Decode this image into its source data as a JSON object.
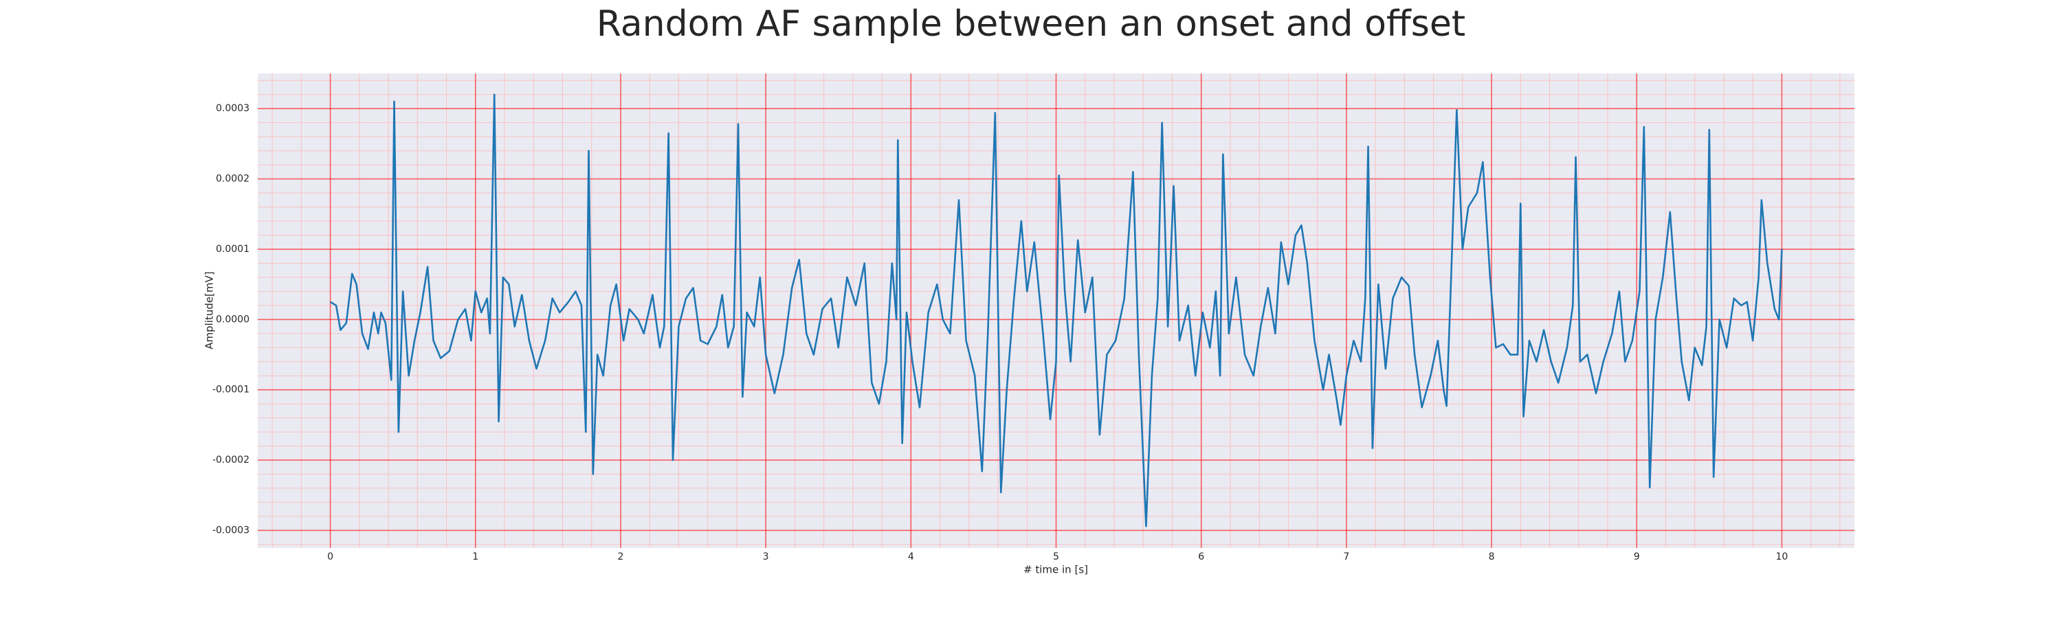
{
  "chart_data": {
    "type": "line",
    "title": "Random AF sample between an onset and offset",
    "x_label": "# time in [s]",
    "y_label": "Amplitude[mV]",
    "xlim": [
      -0.5,
      10.5
    ],
    "ylim": [
      -0.000325,
      0.00035
    ],
    "xticks": [
      0,
      1,
      2,
      3,
      4,
      5,
      6,
      7,
      8,
      9,
      10
    ],
    "yticks": [
      -0.0003,
      -0.0002,
      -0.0001,
      {
        "value": 0,
        "label": "0.0000"
      },
      0.0001,
      0.0002,
      0.0003
    ],
    "grid": true,
    "minor_divisions": 5,
    "series": [
      {
        "color": "#1f77b4",
        "x": [
          0.0,
          0.04,
          0.07,
          0.11,
          0.15,
          0.18,
          0.22,
          0.26,
          0.3,
          0.33,
          0.35,
          0.38,
          0.42,
          0.44,
          0.47,
          0.5,
          0.54,
          0.58,
          0.62,
          0.67,
          0.71,
          0.76,
          0.82,
          0.88,
          0.93,
          0.97,
          1.0,
          1.04,
          1.08,
          1.1,
          1.13,
          1.16,
          1.19,
          1.23,
          1.27,
          1.32,
          1.37,
          1.42,
          1.48,
          1.53,
          1.58,
          1.64,
          1.69,
          1.73,
          1.76,
          1.78,
          1.81,
          1.84,
          1.88,
          1.93,
          1.97,
          2.02,
          2.06,
          2.12,
          2.16,
          2.22,
          2.27,
          2.3,
          2.33,
          2.36,
          2.4,
          2.45,
          2.5,
          2.55,
          2.6,
          2.66,
          2.7,
          2.74,
          2.78,
          2.81,
          2.84,
          2.87,
          2.92,
          2.96,
          3.0,
          3.06,
          3.12,
          3.18,
          3.23,
          3.28,
          3.33,
          3.39,
          3.45,
          3.5,
          3.56,
          3.62,
          3.68,
          3.73,
          3.78,
          3.83,
          3.87,
          3.9,
          3.91,
          3.94,
          3.97,
          4.01,
          4.06,
          4.12,
          4.18,
          4.22,
          4.27,
          4.33,
          4.38,
          4.44,
          4.49,
          4.53,
          4.58,
          4.62,
          4.66,
          4.71,
          4.76,
          4.8,
          4.85,
          4.91,
          4.96,
          5.0,
          5.02,
          5.06,
          5.1,
          5.15,
          5.2,
          5.25,
          5.3,
          5.35,
          5.41,
          5.47,
          5.53,
          5.57,
          5.62,
          5.66,
          5.7,
          5.73,
          5.77,
          5.81,
          5.85,
          5.91,
          5.96,
          6.01,
          6.06,
          6.1,
          6.13,
          6.15,
          6.19,
          6.24,
          6.3,
          6.36,
          6.41,
          6.46,
          6.51,
          6.55,
          6.6,
          6.65,
          6.69,
          6.73,
          6.78,
          6.84,
          6.88,
          6.93,
          6.96,
          7.0,
          7.05,
          7.1,
          7.13,
          7.15,
          7.18,
          7.22,
          7.27,
          7.32,
          7.38,
          7.43,
          7.47,
          7.52,
          7.58,
          7.63,
          7.67,
          7.69,
          7.72,
          7.76,
          7.8,
          7.84,
          7.9,
          7.94,
          7.99,
          8.03,
          8.08,
          8.13,
          8.18,
          8.2,
          8.22,
          8.26,
          8.31,
          8.36,
          8.41,
          8.46,
          8.52,
          8.56,
          8.58,
          8.61,
          8.66,
          8.72,
          8.77,
          8.83,
          8.88,
          8.92,
          8.97,
          9.02,
          9.05,
          9.09,
          9.13,
          9.18,
          9.23,
          9.27,
          9.31,
          9.36,
          9.4,
          9.45,
          9.48,
          9.5,
          9.53,
          9.57,
          9.62,
          9.67,
          9.72,
          9.76,
          9.8,
          9.84,
          9.86,
          9.9,
          9.95,
          9.98,
          10.0
        ],
        "values": [
          2.5e-05,
          2e-05,
          -1.5e-05,
          -5e-06,
          6.5e-05,
          5e-05,
          -2e-05,
          -4.2e-05,
          1e-05,
          -2e-05,
          1e-05,
          -5e-06,
          -8.6e-05,
          0.00031,
          -0.00016,
          4e-05,
          -8e-05,
          -3e-05,
          1e-05,
          7.5e-05,
          -3e-05,
          -5.5e-05,
          -4.5e-05,
          0.0,
          1.5e-05,
          -3e-05,
          4e-05,
          1e-05,
          3e-05,
          -2e-05,
          0.00032,
          -0.000145,
          6e-05,
          5e-05,
          -1e-05,
          3.5e-05,
          -3e-05,
          -7e-05,
          -3e-05,
          3e-05,
          1e-05,
          2.5e-05,
          4e-05,
          2e-05,
          -0.00016,
          0.00024,
          -0.00022,
          -5e-05,
          -8e-05,
          2e-05,
          5e-05,
          -3e-05,
          1.5e-05,
          0.0,
          -2e-05,
          3.5e-05,
          -4e-05,
          -1e-05,
          0.000265,
          -0.0002,
          -1e-05,
          3e-05,
          4.5e-05,
          -3e-05,
          -3.5e-05,
          -1e-05,
          3.5e-05,
          -4e-05,
          -1e-05,
          0.000278,
          -0.00011,
          1e-05,
          -1e-05,
          6e-05,
          -5e-05,
          -0.000105,
          -5e-05,
          4.5e-05,
          8.5e-05,
          -2e-05,
          -5e-05,
          1.5e-05,
          3e-05,
          -4e-05,
          6e-05,
          2e-05,
          8e-05,
          -9e-05,
          -0.00012,
          -6e-05,
          8e-05,
          0.0,
          0.000255,
          -0.000176,
          1e-05,
          -6e-05,
          -0.000125,
          1e-05,
          5e-05,
          0.0,
          -2e-05,
          0.00017,
          -3e-05,
          -8e-05,
          -0.000216,
          -2e-05,
          0.000294,
          -0.000246,
          -0.0001,
          3e-05,
          0.00014,
          4e-05,
          0.00011,
          -2e-05,
          -0.000142,
          -6e-05,
          0.000205,
          4e-05,
          -6e-05,
          0.000113,
          1e-05,
          6e-05,
          -0.000164,
          -5e-05,
          -3e-05,
          3e-05,
          0.00021,
          -5e-05,
          -0.000294,
          -8e-05,
          3e-05,
          0.00028,
          -1e-05,
          0.00019,
          -3e-05,
          2e-05,
          -8e-05,
          1e-05,
          -4e-05,
          4e-05,
          -8e-05,
          0.000235,
          -2e-05,
          6e-05,
          -5e-05,
          -8e-05,
          -1e-05,
          4.5e-05,
          -2e-05,
          0.00011,
          5e-05,
          0.00012,
          0.000134,
          8e-05,
          -3e-05,
          -0.0001,
          -5e-05,
          -0.00011,
          -0.00015,
          -8e-05,
          -3e-05,
          -6e-05,
          3e-05,
          0.000246,
          -0.000183,
          5e-05,
          -7e-05,
          3e-05,
          6e-05,
          4.8e-05,
          -5e-05,
          -0.000125,
          -8e-05,
          -3e-05,
          -0.0001,
          -0.000123,
          5e-05,
          0.000298,
          0.0001,
          0.00016,
          0.00018,
          0.000224,
          6e-05,
          -4e-05,
          -3.5e-05,
          -5e-05,
          -5e-05,
          0.000165,
          -0.000138,
          -3e-05,
          -6e-05,
          -1.5e-05,
          -6e-05,
          -9e-05,
          -4e-05,
          2e-05,
          0.000231,
          -6e-05,
          -5e-05,
          -0.000105,
          -6e-05,
          -2e-05,
          4e-05,
          -6e-05,
          -3e-05,
          4e-05,
          0.000274,
          -0.000239,
          0.0,
          6e-05,
          0.000153,
          4e-05,
          -6e-05,
          -0.000115,
          -4e-05,
          -6.5e-05,
          -1e-05,
          0.00027,
          -0.000224,
          0.0,
          -4e-05,
          3e-05,
          2e-05,
          2.5e-05,
          -3e-05,
          6e-05,
          0.00017,
          8e-05,
          1.5e-05,
          0.0,
          0.0001
        ]
      }
    ]
  }
}
